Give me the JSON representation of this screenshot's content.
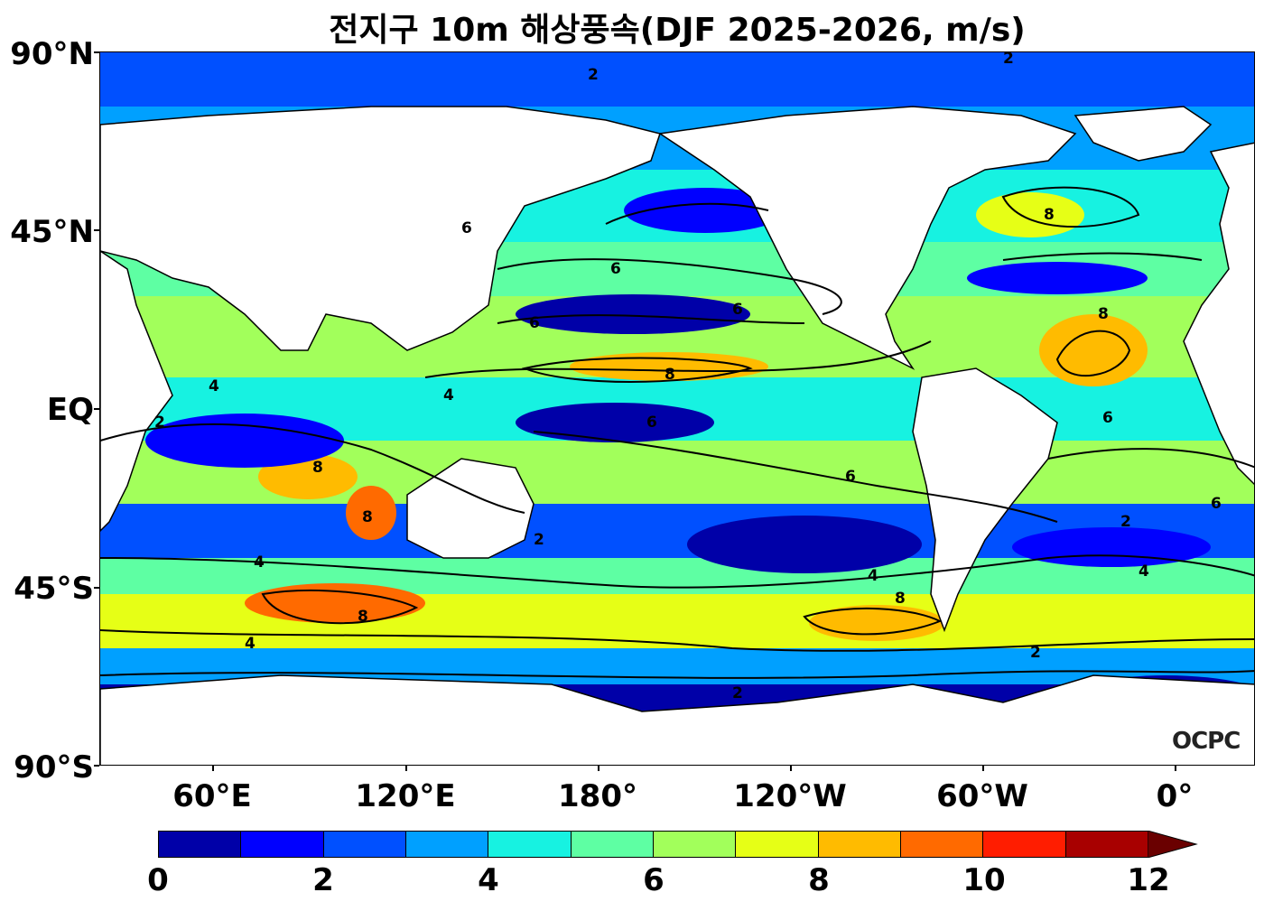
{
  "title": "전지구 10m 해상풍속(DJF 2025-2026, m/s)",
  "lat_labels": [
    "90°N",
    "45°N",
    "EQ",
    "45°S",
    "90°S"
  ],
  "lon_labels": [
    "60°E",
    "120°E",
    "180°",
    "120°W",
    "60°W",
    "0°"
  ],
  "colorbar": {
    "ticks": [
      "0",
      "2",
      "4",
      "6",
      "8",
      "10",
      "12"
    ],
    "colors": [
      "#0000a8",
      "#0000ff",
      "#0050ff",
      "#00a0ff",
      "#17f2e1",
      "#5effa3",
      "#a2ff5b",
      "#e6ff16",
      "#ffbb00",
      "#ff6a00",
      "#ff1d00",
      "#a80000"
    ],
    "extend": "max"
  },
  "contour_labels": [
    "2",
    "4",
    "6",
    "8"
  ],
  "logo_text": "OCPC"
}
